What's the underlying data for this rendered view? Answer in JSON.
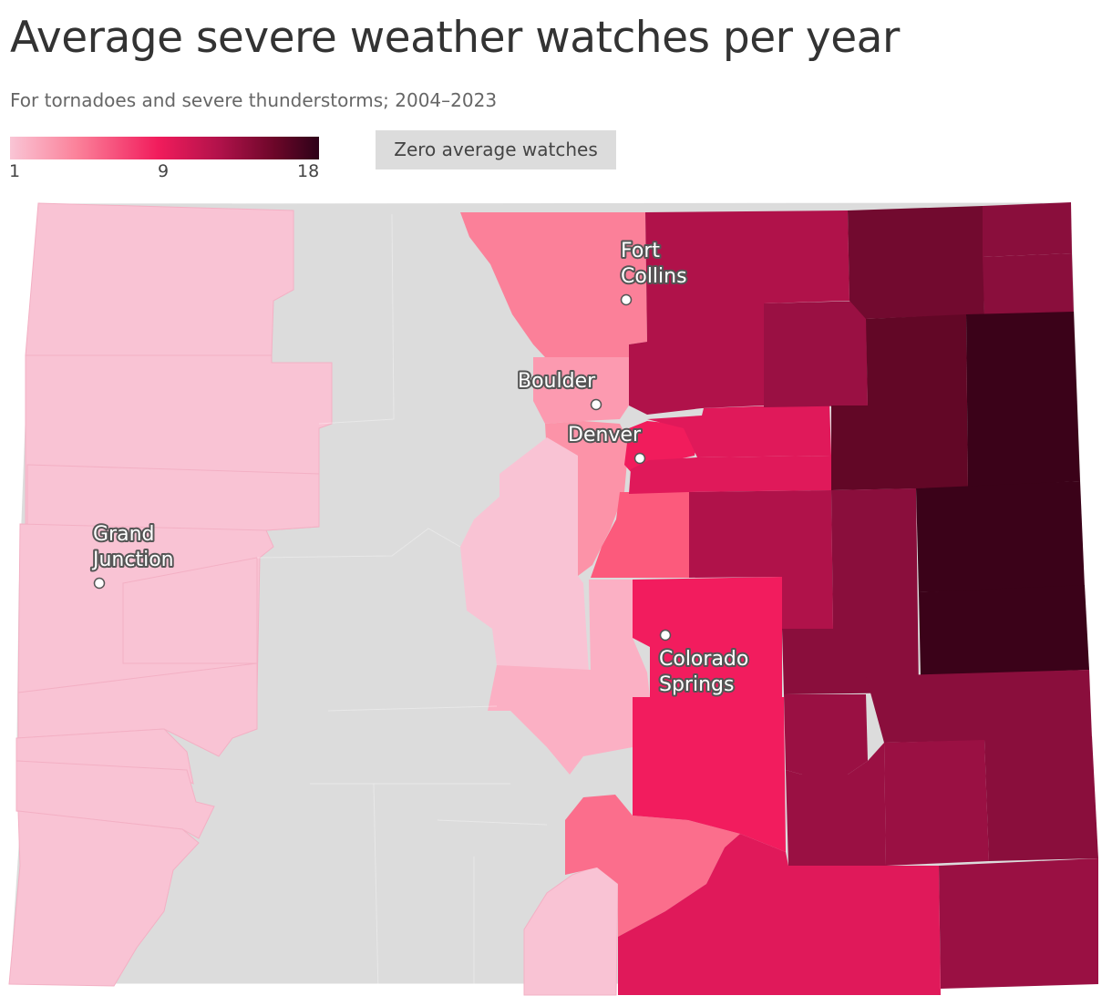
{
  "title": "Average severe weather watches per year",
  "subtitle": "For tornadoes and severe thunderstorms; 2004–2023",
  "legend": {
    "min_label": "1",
    "mid_label": "9",
    "max_label": "18",
    "zero_label": "Zero average watches",
    "colors": [
      "#f9c5d5",
      "#fb8099",
      "#f11c5c",
      "#b0124a",
      "#6a0628",
      "#2e0219"
    ],
    "zero_color": "#dcdcdc"
  },
  "cities": [
    {
      "name_lines": [
        "Fort",
        "Collins"
      ]
    },
    {
      "name_lines": [
        "Boulder"
      ]
    },
    {
      "name_lines": [
        "Denver"
      ]
    },
    {
      "name_lines": [
        "Grand",
        "Junction"
      ]
    },
    {
      "name_lines": [
        "Colorado",
        "Springs"
      ]
    }
  ]
}
